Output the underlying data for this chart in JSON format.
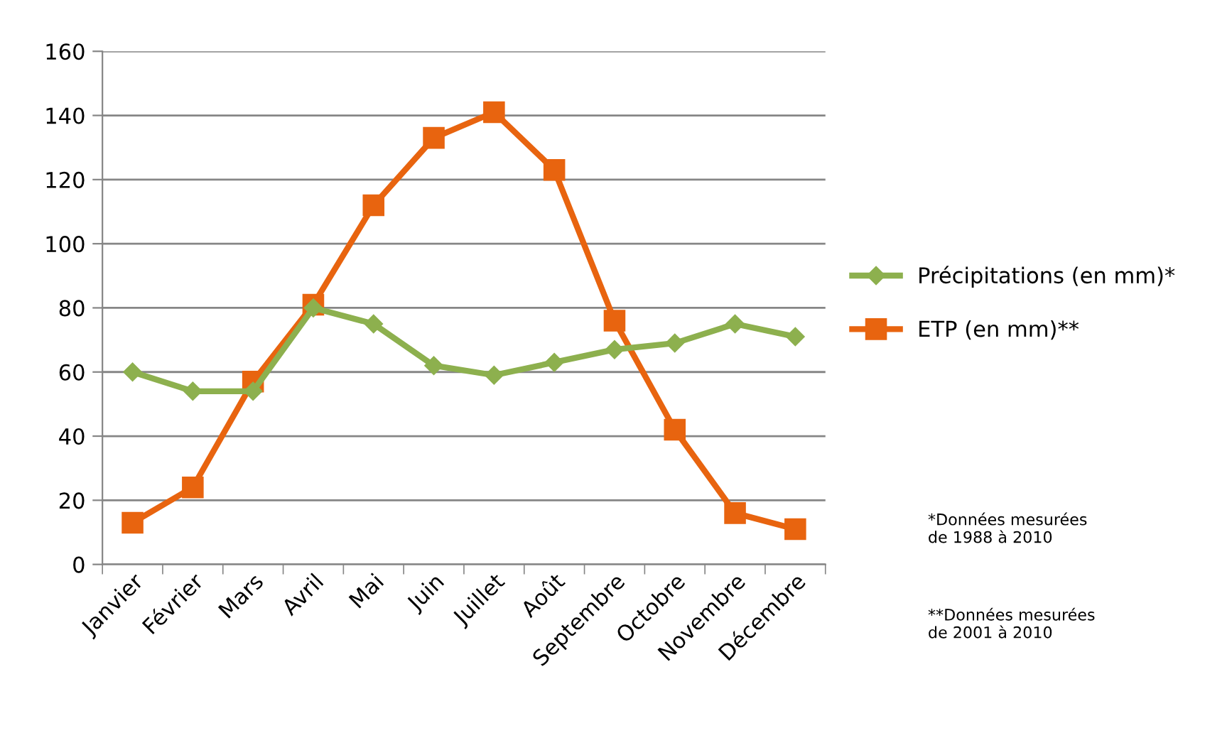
{
  "chart_data": {
    "type": "line",
    "categories": [
      "Janvier",
      "Février",
      "Mars",
      "Avril",
      "Mai",
      "Juin",
      "Juillet",
      "Août",
      "Septembre",
      "Octobre",
      "Novembre",
      "Décembre"
    ],
    "series": [
      {
        "name": "Précipitations (en mm)*",
        "color": "#8db04e",
        "marker": "diamond",
        "values": [
          60,
          54,
          54,
          80,
          75,
          62,
          59,
          63,
          67,
          69,
          75,
          71
        ]
      },
      {
        "name": "ETP (en mm)**",
        "color": "#e8640f",
        "marker": "square",
        "values": [
          13,
          24,
          57,
          81,
          112,
          133,
          141,
          123,
          76,
          42,
          16,
          11
        ]
      }
    ],
    "ylim": [
      0,
      160
    ],
    "yticks": [
      0,
      20,
      40,
      60,
      80,
      100,
      120,
      140,
      160
    ],
    "grid": "y",
    "legend": "right",
    "line_style": "solid",
    "annotations": [
      "*Données mesurées\nde 1988 à 2010",
      "**Données mesurées\nde 2001 à 2010"
    ]
  }
}
